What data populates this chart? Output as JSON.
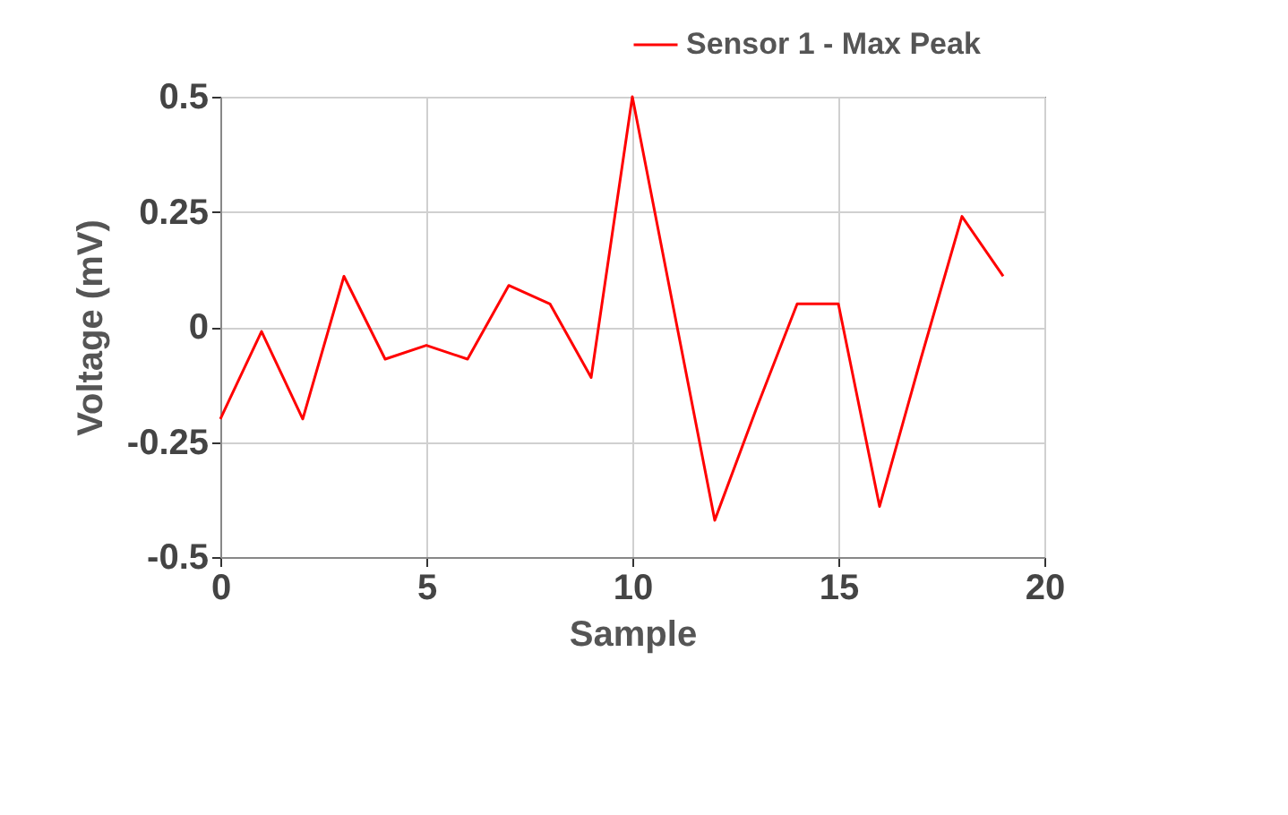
{
  "chart_data": {
    "type": "line",
    "xlabel": "Sample",
    "ylabel": "Voltage (mV)",
    "x": [
      0,
      1,
      2,
      3,
      4,
      5,
      6,
      7,
      8,
      9,
      10,
      11,
      12,
      13,
      14,
      15,
      16,
      17,
      18,
      19
    ],
    "series": [
      {
        "name": "Sensor 1 - Max Peak",
        "color": "#ff0000",
        "values": [
          -0.2,
          -0.01,
          -0.2,
          0.11,
          -0.07,
          -0.04,
          -0.07,
          0.09,
          0.05,
          -0.11,
          0.5,
          0.04,
          -0.42,
          -0.18,
          0.05,
          0.05,
          -0.39,
          -0.07,
          0.24,
          0.11
        ]
      }
    ],
    "xlim": [
      0,
      20
    ],
    "xticks": [
      0,
      5,
      10,
      15,
      20
    ],
    "ylim": [
      -0.5,
      0.5
    ],
    "yticks": [
      -0.5,
      -0.25,
      0,
      0.25,
      0.5
    ],
    "grid": true,
    "legend": "top right",
    "marker": "none",
    "line_style": "solid"
  }
}
